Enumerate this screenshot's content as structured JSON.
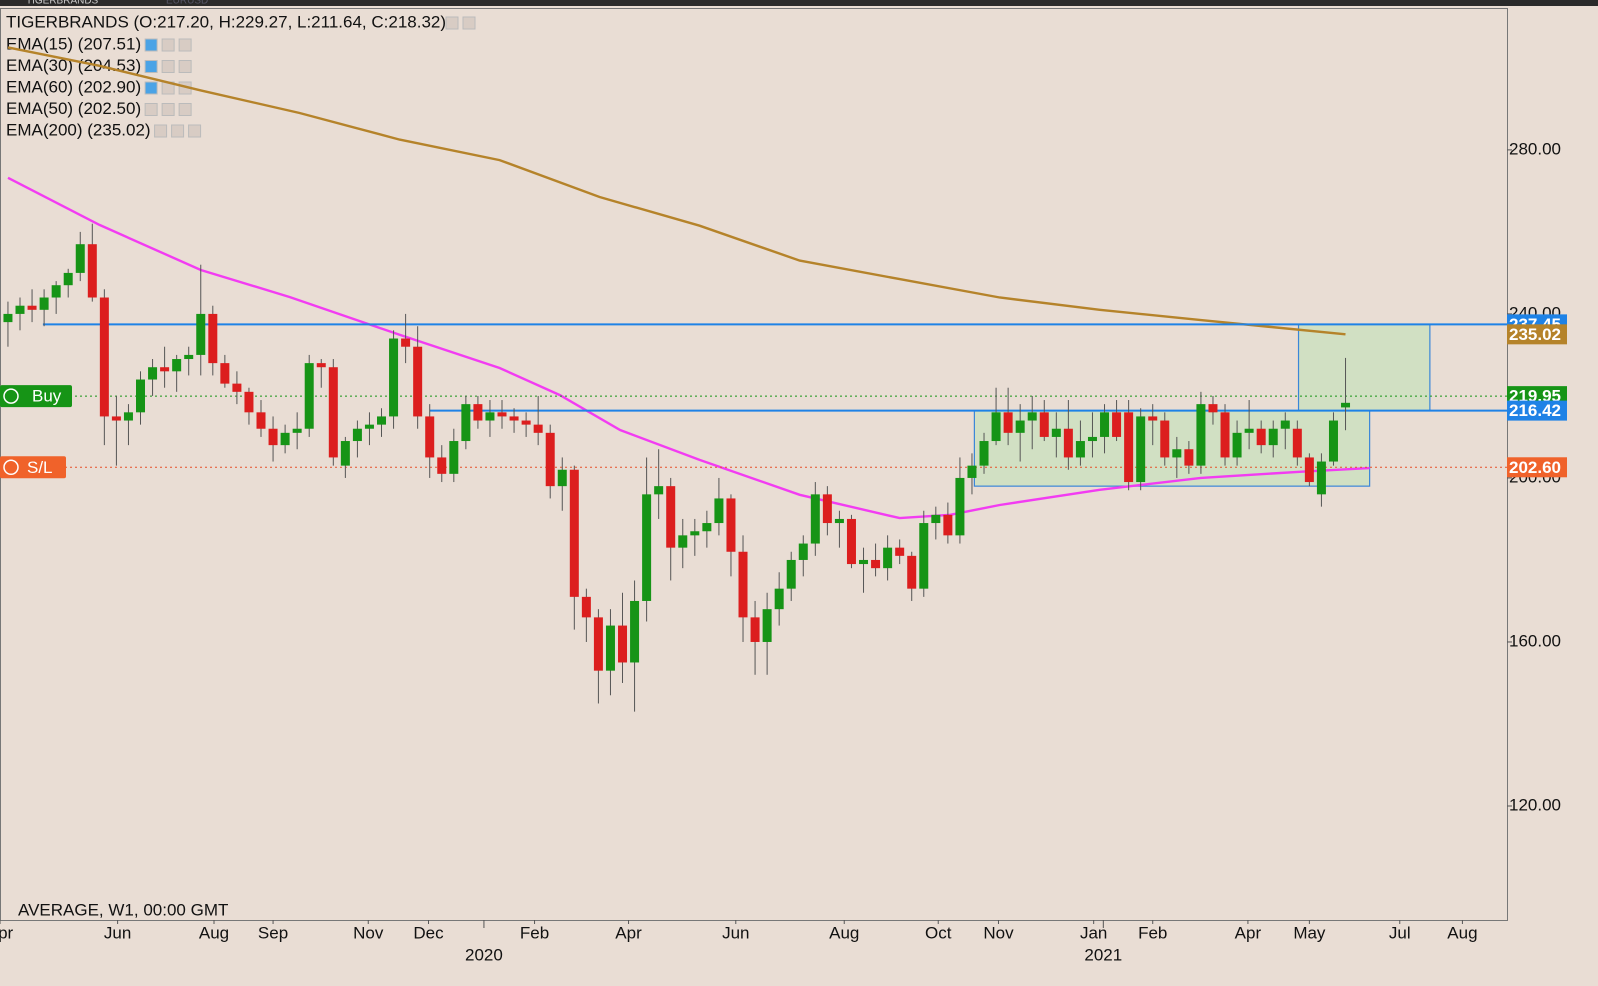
{
  "chart_data": {
    "type": "candlestick",
    "tabs": [
      "TIGERBRANDS",
      "EURUSD"
    ],
    "title": "TIGERBRANDS (O:217.20, H:229.27, L:211.64, C:218.32)",
    "indicators": [
      "EMA(15) (207.51)",
      "EMA(30) (204.53)",
      "EMA(60) (202.90)",
      "EMA(50) (202.50)",
      "EMA(200) (235.02)"
    ],
    "footer": "AVERAGE, W1, 00:00 GMT",
    "up_color": "#169416",
    "down_color": "#dc1e1e",
    "candles": {
      "open": [
        238,
        240,
        242,
        241,
        244,
        247,
        250,
        257,
        244,
        215,
        214,
        216,
        224,
        227,
        226,
        229,
        230,
        240,
        228,
        223,
        221,
        216,
        212,
        208,
        211,
        212,
        228,
        227,
        203,
        209,
        212,
        213,
        215,
        234,
        232,
        215,
        205,
        201,
        209,
        218,
        214,
        216,
        215,
        214,
        213,
        211,
        198,
        202,
        171,
        166,
        153,
        164,
        155,
        170,
        196,
        198,
        183,
        186,
        187,
        189,
        195,
        182,
        166,
        160,
        168,
        173,
        180,
        184,
        196,
        189,
        190,
        179,
        180,
        178,
        183,
        181,
        173,
        189,
        191,
        186,
        200,
        203,
        209,
        216,
        211,
        214,
        216,
        210,
        212,
        205,
        209,
        210,
        216,
        216,
        199,
        215,
        214,
        205,
        207,
        203,
        218,
        216,
        205,
        211,
        212,
        208,
        212,
        212,
        205,
        196,
        204,
        217.2
      ],
      "high": [
        243,
        244,
        246,
        246,
        248,
        251,
        260,
        262,
        246,
        220,
        218,
        226,
        229,
        232,
        230,
        232,
        252,
        242,
        230,
        226,
        222,
        219,
        215,
        213,
        216,
        230,
        229,
        229,
        210,
        214,
        216,
        217,
        236,
        240,
        237,
        218,
        208,
        212,
        220,
        220,
        219,
        219,
        217,
        216,
        220,
        213,
        205,
        203,
        173,
        168,
        168,
        172,
        175,
        205,
        207,
        200,
        190,
        190,
        192,
        200,
        196,
        186,
        170,
        172,
        177,
        182,
        186,
        199,
        198,
        192,
        191,
        183,
        184,
        186,
        185,
        182,
        192,
        193,
        194,
        205,
        206,
        211,
        222,
        222,
        218,
        220,
        219,
        216,
        219,
        214,
        216,
        218,
        219,
        219,
        217,
        218,
        216,
        210,
        209,
        221,
        220,
        218,
        214,
        219,
        214,
        214,
        216,
        214,
        206,
        206,
        216,
        229.27
      ],
      "low": [
        232,
        236,
        238,
        237,
        240,
        244,
        248,
        243,
        208,
        203,
        208,
        213,
        220,
        222,
        221,
        225,
        225,
        225,
        222,
        218,
        213,
        210,
        204,
        206,
        207,
        210,
        222,
        203,
        200,
        205,
        208,
        210,
        212,
        228,
        212,
        200,
        199,
        199,
        207,
        212,
        210,
        212,
        211,
        210,
        208,
        195,
        192,
        163,
        160,
        145,
        147,
        150,
        143,
        165,
        190,
        175,
        178,
        181,
        183,
        186,
        176,
        160,
        152,
        152,
        164,
        170,
        176,
        181,
        186,
        183,
        178,
        172,
        176,
        175,
        179,
        170,
        171,
        185,
        184,
        184,
        196,
        201,
        208,
        208,
        204,
        207,
        209,
        205,
        202,
        203,
        205,
        206,
        209,
        197,
        197,
        208,
        203,
        200,
        201,
        201,
        213,
        203,
        203,
        207,
        206,
        205,
        207,
        203,
        198,
        193,
        203,
        211.64
      ],
      "close": [
        240,
        242,
        241,
        244,
        247,
        250,
        257,
        244,
        215,
        214,
        216,
        224,
        227,
        226,
        229,
        230,
        240,
        228,
        223,
        221,
        216,
        212,
        208,
        211,
        212,
        228,
        227,
        205,
        209,
        212,
        213,
        215,
        234,
        232,
        215,
        205,
        201,
        209,
        218,
        214,
        216,
        215,
        214,
        213,
        211,
        198,
        202,
        171,
        166,
        153,
        164,
        155,
        170,
        196,
        198,
        183,
        186,
        187,
        189,
        195,
        182,
        166,
        160,
        168,
        173,
        180,
        184,
        196,
        189,
        190,
        179,
        180,
        178,
        183,
        181,
        173,
        189,
        191,
        186,
        200,
        203,
        209,
        216,
        211,
        214,
        216,
        210,
        212,
        205,
        209,
        210,
        216,
        210,
        199,
        215,
        214,
        205,
        207,
        203,
        218,
        216,
        205,
        211,
        212,
        208,
        212,
        214,
        205,
        199,
        204,
        214,
        218.32
      ]
    },
    "lines": [
      {
        "name": "EMA(200)",
        "color": "#b5832a",
        "x": [
          0,
          7.6,
          16,
          24.2,
          32.5,
          40.8,
          49.1,
          57.4,
          65.7,
          74,
          82.3,
          90.6,
          99,
          111
        ],
        "values": [
          305,
          300.5,
          294.5,
          289,
          282.5,
          277.5,
          268.5,
          261.5,
          253,
          248.5,
          244,
          241,
          238.5,
          235.02
        ]
      },
      {
        "name": "EMA(30)",
        "color": "#f23cf2",
        "x": [
          0,
          7.6,
          16,
          23.4,
          32.5,
          40.8,
          45.8,
          50.8,
          57.4,
          65.7,
          74,
          78.2,
          82.3,
          90.6,
          99,
          107.2,
          113
        ],
        "values": [
          273.2,
          261.7,
          250.7,
          244.1,
          234.9,
          226.8,
          220.2,
          211.7,
          204.4,
          195.9,
          190.2,
          191,
          193.4,
          197.1,
          200,
          201.5,
          202.4
        ]
      }
    ],
    "zones": [
      {
        "x": [
          80.2,
          113
        ],
        "y": [
          198,
          216.42
        ]
      },
      {
        "x": [
          107.1,
          118
        ],
        "y": [
          216.42,
          237.45
        ]
      }
    ],
    "hlines": [
      {
        "value": 237.45,
        "color": "#1e82e6",
        "style": "solid",
        "x_start": 2.9
      },
      {
        "value": 216.42,
        "color": "#1e82e6",
        "style": "solid",
        "x_start": 35
      },
      {
        "value": 219.95,
        "color": "#169416",
        "style": "dotted",
        "x_start": -0.66
      },
      {
        "value": 202.6,
        "color": "#e8502a",
        "style": "dotted",
        "x_start": -0.66
      }
    ],
    "trade_markers": [
      {
        "label": "Buy",
        "value": 219.95,
        "color": "#169416"
      },
      {
        "label": "S/L",
        "value": 202.6,
        "color": "#f0622a"
      }
    ],
    "price_labels": [
      {
        "value": 237.45,
        "label": "237.45",
        "color": "#1e82e6"
      },
      {
        "value": 235.02,
        "label": "235.02",
        "color": "#b5832a"
      },
      {
        "value": 219.95,
        "label": "219.95",
        "color": "#169416"
      },
      {
        "value": 216.42,
        "label": "216.42",
        "color": "#1e82e6"
      },
      {
        "value": 202.6,
        "label": "202.60",
        "color": "#f0622a"
      }
    ],
    "xlim": [
      -0.66,
      124.4
    ],
    "ylim": [
      92.2,
      314.6
    ],
    "yticks": [
      {
        "value": 120,
        "label": "120.00"
      },
      {
        "value": 160,
        "label": "160.00"
      },
      {
        "value": 200,
        "label": "200.00"
      },
      {
        "value": 240,
        "label": "240.00"
      },
      {
        "value": 280,
        "label": "280.00"
      }
    ],
    "xticks": [
      {
        "value": -0.66,
        "label": "Apr"
      },
      {
        "value": 9.1,
        "label": "Jun"
      },
      {
        "value": 17.1,
        "label": "Aug"
      },
      {
        "value": 22,
        "label": "Sep"
      },
      {
        "value": 29.9,
        "label": "Nov"
      },
      {
        "value": 34.9,
        "label": "Dec"
      },
      {
        "value": 43.7,
        "label": "Feb"
      },
      {
        "value": 51.5,
        "label": "Apr"
      },
      {
        "value": 60.4,
        "label": "Jun"
      },
      {
        "value": 69.4,
        "label": "Aug"
      },
      {
        "value": 77.2,
        "label": "Oct"
      },
      {
        "value": 82.2,
        "label": "Nov"
      },
      {
        "value": 90.1,
        "label": "Jan"
      },
      {
        "value": 95,
        "label": "Feb"
      },
      {
        "value": 102.9,
        "label": "Apr"
      },
      {
        "value": 108,
        "label": "May"
      },
      {
        "value": 115.5,
        "label": "Jul"
      },
      {
        "value": 120.7,
        "label": "Aug"
      }
    ],
    "year_labels": [
      {
        "value": 39.5,
        "label": "2020"
      },
      {
        "value": 90.9,
        "label": "2021"
      }
    ]
  }
}
